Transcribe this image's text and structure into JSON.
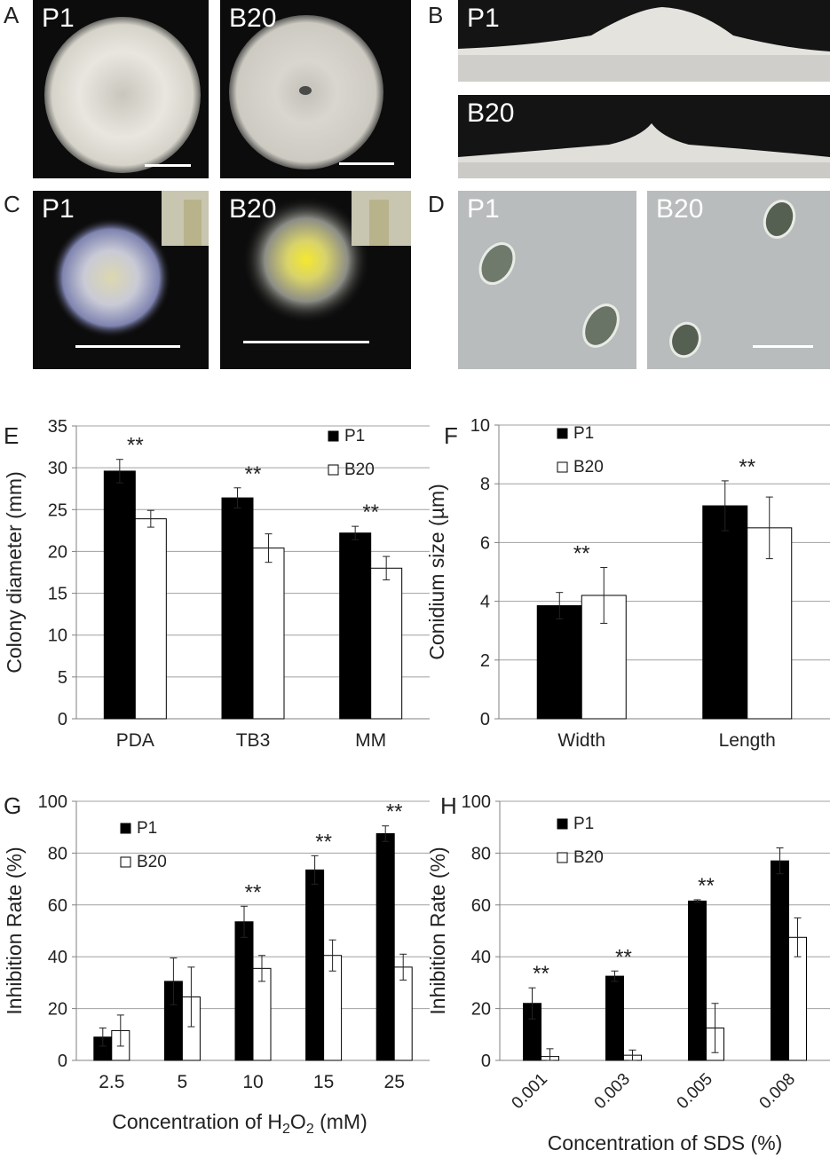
{
  "panels": {
    "A": {
      "letter": "A",
      "left_label": "P1",
      "right_label": "B20"
    },
    "B": {
      "letter": "B",
      "top_label": "P1",
      "bottom_label": "B20"
    },
    "C": {
      "letter": "C",
      "left_label": "P1",
      "right_label": "B20"
    },
    "D": {
      "letter": "D",
      "left_label": "P1",
      "right_label": "B20"
    }
  },
  "colors": {
    "p1": "#000000",
    "b20": "#ffffff",
    "grid": "#a0a0a0",
    "axis": "#808080"
  },
  "chart_data": [
    {
      "id": "E",
      "letter": "E",
      "type": "bar",
      "ylabel": "Colony diameter (mm)",
      "xlabel": "",
      "ylim": [
        0,
        35
      ],
      "yticks": [
        0,
        5,
        10,
        15,
        20,
        25,
        30,
        35
      ],
      "categories": [
        "PDA",
        "TB3",
        "MM"
      ],
      "series": [
        {
          "name": "P1",
          "values": [
            29.6,
            26.4,
            22.2
          ],
          "errors": [
            1.4,
            1.2,
            0.8
          ]
        },
        {
          "name": "B20",
          "values": [
            23.9,
            20.4,
            18.0
          ],
          "errors": [
            1.0,
            1.7,
            1.4
          ]
        }
      ],
      "significance": [
        "**",
        "**",
        "**"
      ],
      "legend": "top-right"
    },
    {
      "id": "F",
      "letter": "F",
      "type": "bar",
      "ylabel": "Conidium size (µm)",
      "xlabel": "",
      "ylim": [
        0,
        10
      ],
      "yticks": [
        0,
        2,
        4,
        6,
        8,
        10
      ],
      "categories": [
        "Width",
        "Length"
      ],
      "series": [
        {
          "name": "P1",
          "values": [
            3.85,
            7.25
          ],
          "errors": [
            0.45,
            0.85
          ]
        },
        {
          "name": "B20",
          "values": [
            4.2,
            6.5
          ],
          "errors": [
            0.95,
            1.05
          ]
        }
      ],
      "significance": [
        "**",
        "**"
      ],
      "legend": "top-left"
    },
    {
      "id": "G",
      "letter": "G",
      "type": "bar",
      "ylabel": "Inhibition Rate (%)",
      "xlabel": "Concentration of H2O2 (mM)",
      "ylim": [
        0,
        100
      ],
      "yticks": [
        0,
        20,
        40,
        60,
        80,
        100
      ],
      "categories": [
        "2.5",
        "5",
        "10",
        "15",
        "25"
      ],
      "series": [
        {
          "name": "P1",
          "values": [
            9,
            30.5,
            53.5,
            73.5,
            87.5
          ],
          "errors": [
            3.5,
            9,
            6,
            5.5,
            3
          ]
        },
        {
          "name": "B20",
          "values": [
            11.5,
            24.5,
            35.5,
            40.5,
            36
          ],
          "errors": [
            6,
            11.5,
            5,
            6,
            5
          ]
        }
      ],
      "significance": [
        "",
        "",
        "**",
        "**",
        "**"
      ],
      "legend": "top-left"
    },
    {
      "id": "H",
      "letter": "H",
      "type": "bar",
      "ylabel": "Inhibition Rate (%)",
      "xlabel": "Concentration of SDS (%)",
      "ylim": [
        0,
        100
      ],
      "yticks": [
        0,
        20,
        40,
        60,
        80,
        100
      ],
      "categories": [
        "0.001",
        "0.003",
        "0.005",
        "0.008"
      ],
      "series": [
        {
          "name": "P1",
          "values": [
            22,
            32.5,
            61.5,
            77
          ],
          "errors": [
            6,
            2,
            0.5,
            5
          ]
        },
        {
          "name": "B20",
          "values": [
            1.5,
            2,
            12.5,
            47.5
          ],
          "errors": [
            3,
            2,
            9.5,
            7.5
          ]
        }
      ],
      "significance": [
        "**",
        "**",
        "**",
        ""
      ],
      "legend": "top-left"
    }
  ]
}
